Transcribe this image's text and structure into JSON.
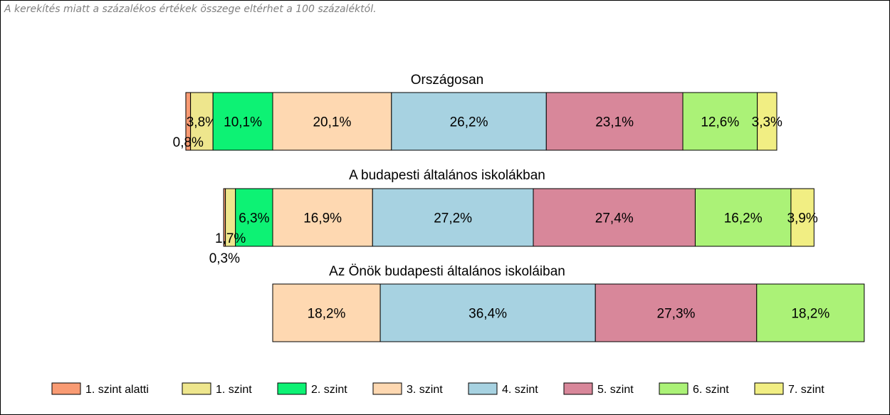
{
  "note": "A kerekítés miatt a  százalékos értékek összege eltérhet a 100 százaléktól.",
  "chart_data": {
    "type": "bar",
    "orientation": "horizontal",
    "stacked": true,
    "normalized": true,
    "series": [
      {
        "name": "1. szint alatti",
        "color": "#F99B73"
      },
      {
        "name": "1. szint",
        "color": "#EEE68D"
      },
      {
        "name": "2. szint",
        "color": "#0DF274"
      },
      {
        "name": "3. szint",
        "color": "#FED8B1"
      },
      {
        "name": "4. szint",
        "color": "#A7D2E1"
      },
      {
        "name": "5. szint",
        "color": "#D8879A"
      },
      {
        "name": "6. szint",
        "color": "#ABF277"
      },
      {
        "name": "7. szint",
        "color": "#F1EE83"
      }
    ],
    "groups": [
      {
        "title": "Országosan",
        "values": [
          0.8,
          3.8,
          10.1,
          20.1,
          26.2,
          23.1,
          12.6,
          3.3
        ],
        "labels": [
          "0,8%",
          "3,8%",
          "10,1%",
          "20,1%",
          "26,2%",
          "23,1%",
          "12,6%",
          "3,3%"
        ]
      },
      {
        "title": "A budapesti általános iskolákban",
        "values": [
          0.3,
          1.7,
          6.3,
          16.9,
          27.2,
          27.4,
          16.2,
          3.9
        ],
        "labels": [
          "0,3%",
          "1,7%",
          "6,3%",
          "16,9%",
          "27,2%",
          "27,4%",
          "16,2%",
          "3,9%"
        ]
      },
      {
        "title": "Az Önök budapesti általános iskoláiban",
        "values": [
          0,
          0,
          0,
          18.2,
          36.4,
          27.3,
          18.2,
          0
        ],
        "labels": [
          "",
          "",
          "",
          "18,2%",
          "36,4%",
          "27,3%",
          "18,2%",
          ""
        ]
      }
    ],
    "legend_position": "bottom",
    "grid": false
  }
}
